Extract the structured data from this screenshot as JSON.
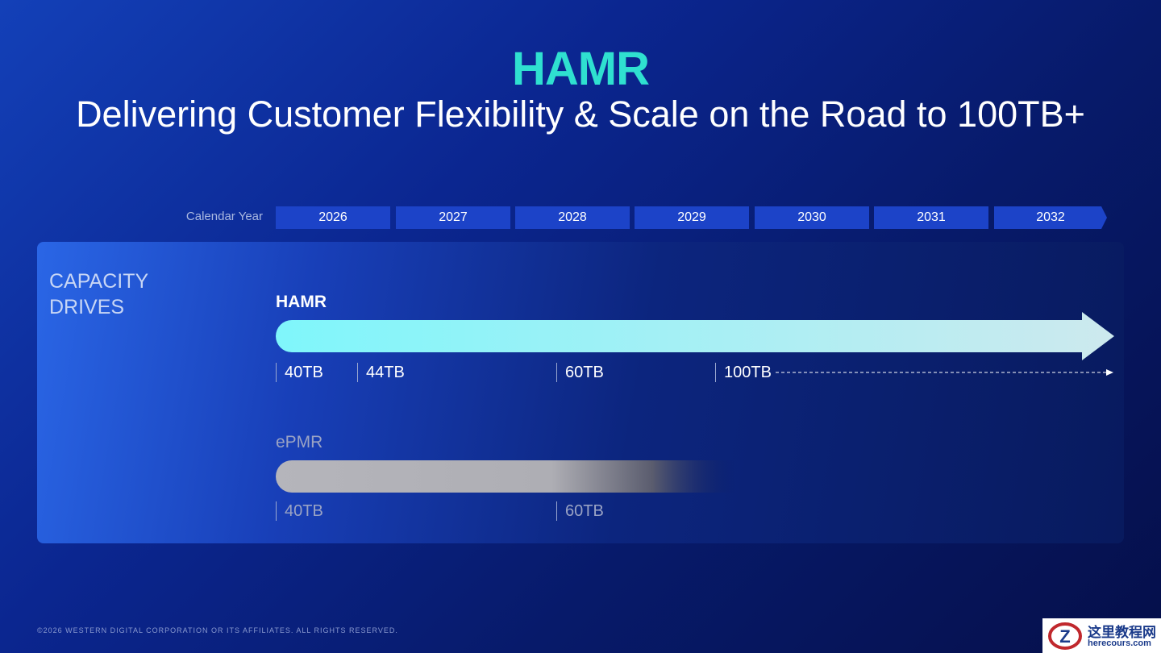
{
  "header": {
    "title": "HAMR",
    "subtitle": "Delivering Customer Flexibility & Scale on the Road to 100TB+"
  },
  "timeline": {
    "label": "Calendar Year",
    "years": [
      "2026",
      "2027",
      "2028",
      "2029",
      "2030",
      "2031",
      "2032"
    ]
  },
  "panel": {
    "label_lines": [
      "CAPACITY",
      "DRIVES"
    ],
    "tracks": [
      {
        "name": "HAMR",
        "milestones": [
          "40TB",
          "44TB",
          "60TB",
          "100TB"
        ]
      },
      {
        "name": "ePMR",
        "milestones": [
          "40TB",
          "60TB"
        ]
      }
    ]
  },
  "footer": {
    "copyright": "©2026 WESTERN DIGITAL CORPORATION OR ITS AFFILIATES. ALL RIGHTS RESERVED."
  },
  "watermark": {
    "title": "这里教程网",
    "url": "herecours.com"
  }
}
